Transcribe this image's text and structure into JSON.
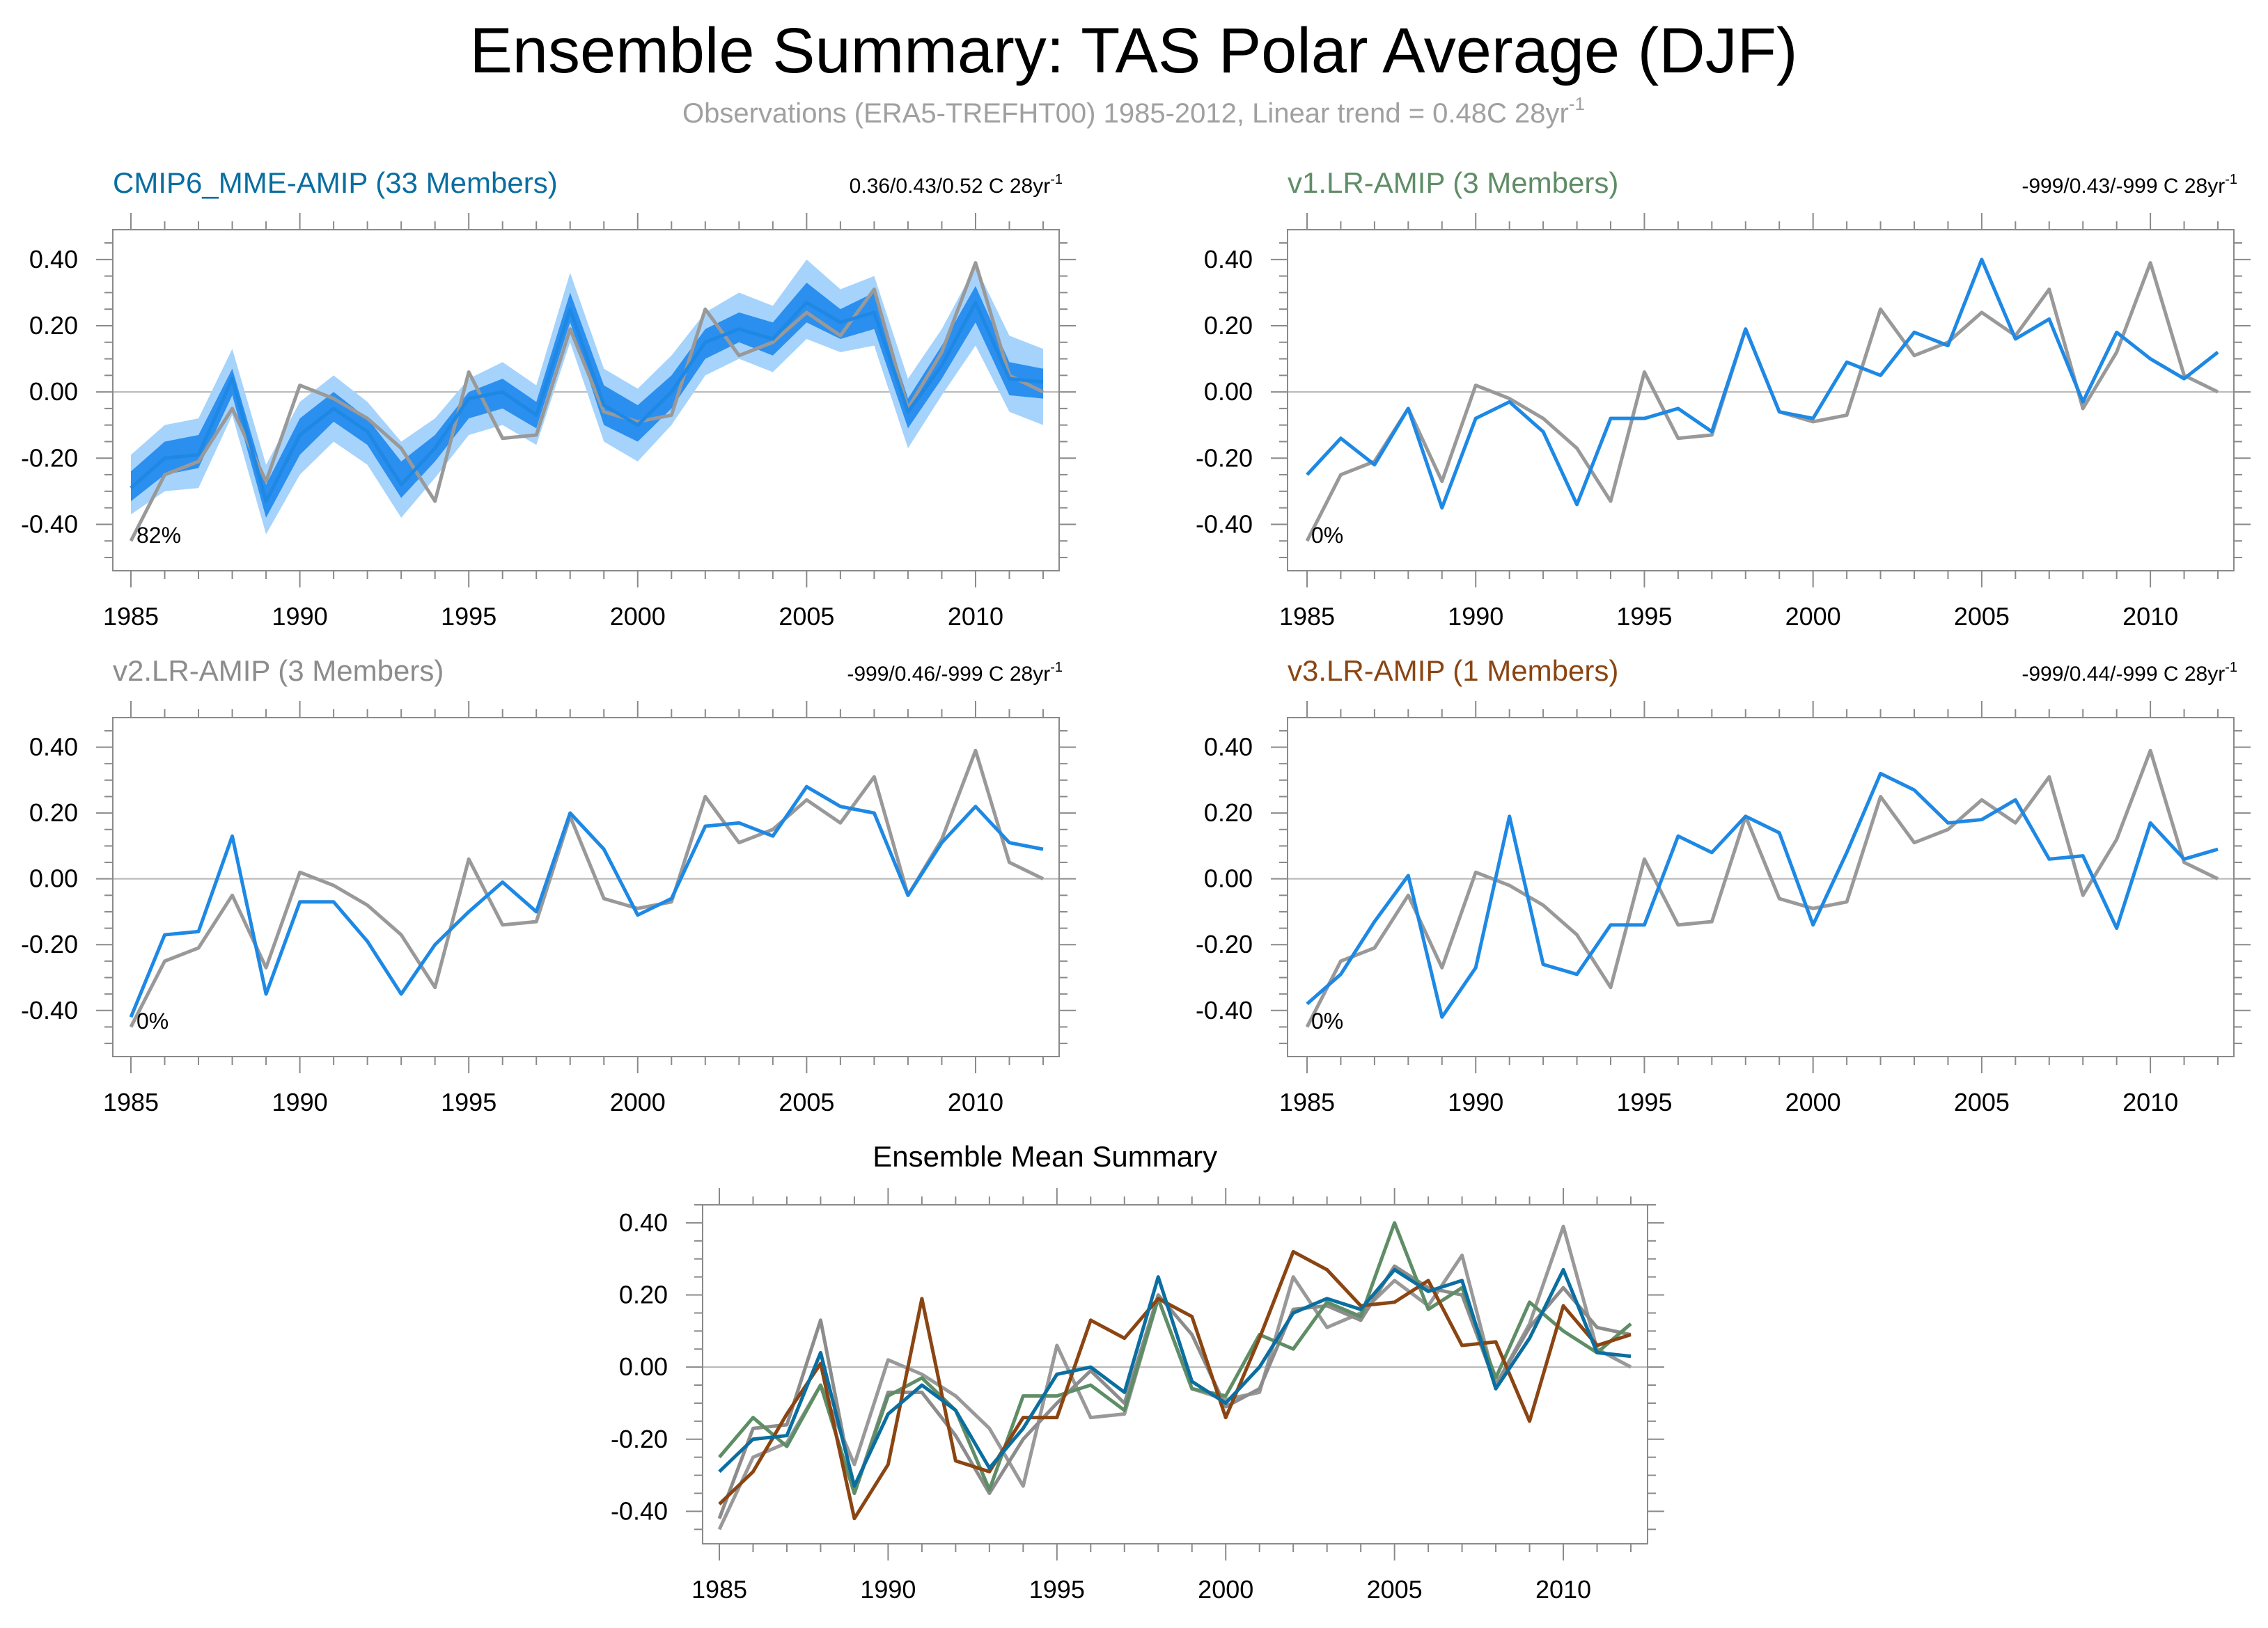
{
  "title": "Ensemble Summary: TAS Polar Average (DJF)",
  "subtitle": "Observations (ERA5-TREFHT00) 1985-2012, Linear trend = 0.48C 28yr",
  "subtitle_sup": "-1",
  "colors": {
    "obs": "#999999",
    "model": "#1e88e5",
    "band_inner": "#2b8fef",
    "band_outer": "#a6d3fb",
    "cmip6": "#0a6ea0",
    "v1": "#5e8d66",
    "v2": "#8c8c8c",
    "v3": "#8b4513"
  },
  "chart_data": [
    {
      "type": "line",
      "title": "CMIP6_MME-AMIP (33 Members)",
      "title_color": "#0a6ea0",
      "trend_text": "0.36/0.43/0.52 C 28yr",
      "trend_sup": "-1",
      "percent_label": "82%",
      "x": [
        1985,
        1986,
        1987,
        1988,
        1989,
        1990,
        1991,
        1992,
        1993,
        1994,
        1995,
        1996,
        1997,
        1998,
        1999,
        2000,
        2001,
        2002,
        2003,
        2004,
        2005,
        2006,
        2007,
        2008,
        2009,
        2010,
        2011,
        2012
      ],
      "xticks": [
        1985,
        1990,
        1995,
        2000,
        2005,
        2010
      ],
      "yticks": [
        -0.4,
        -0.2,
        0.0,
        0.2,
        0.4
      ],
      "yticklabels": [
        "-0.40",
        "-0.20",
        "0.00",
        "0.20",
        "0.40"
      ],
      "xlim": [
        1985,
        2012.6
      ],
      "ylim": [
        -0.54,
        0.49
      ],
      "bands": [
        {
          "name": "outer",
          "lower": [
            -0.37,
            -0.3,
            -0.29,
            -0.07,
            -0.43,
            -0.25,
            -0.15,
            -0.22,
            -0.38,
            -0.26,
            -0.13,
            -0.1,
            -0.16,
            0.15,
            -0.15,
            -0.21,
            -0.1,
            0.05,
            0.1,
            0.06,
            0.16,
            0.12,
            0.14,
            -0.17,
            -0.01,
            0.14,
            -0.06,
            -0.1
          ],
          "upper": [
            -0.19,
            -0.1,
            -0.08,
            0.13,
            -0.22,
            -0.03,
            0.05,
            -0.03,
            -0.15,
            -0.08,
            0.04,
            0.09,
            0.02,
            0.36,
            0.07,
            0.01,
            0.11,
            0.24,
            0.3,
            0.26,
            0.4,
            0.31,
            0.35,
            0.04,
            0.19,
            0.38,
            0.17,
            0.13
          ]
        },
        {
          "name": "inner",
          "lower": [
            -0.33,
            -0.25,
            -0.23,
            -0.01,
            -0.38,
            -0.19,
            -0.09,
            -0.16,
            -0.32,
            -0.21,
            -0.08,
            -0.05,
            -0.11,
            0.21,
            -0.1,
            -0.15,
            -0.05,
            0.1,
            0.15,
            0.11,
            0.21,
            0.16,
            0.19,
            -0.11,
            0.04,
            0.21,
            -0.01,
            -0.02
          ],
          "upper": [
            -0.24,
            -0.15,
            -0.13,
            0.07,
            -0.28,
            -0.08,
            0.0,
            -0.08,
            -0.21,
            -0.13,
            0.0,
            0.04,
            -0.03,
            0.3,
            0.02,
            -0.04,
            0.05,
            0.19,
            0.24,
            0.21,
            0.33,
            0.25,
            0.3,
            -0.02,
            0.14,
            0.32,
            0.09,
            0.07
          ]
        }
      ],
      "series": [
        {
          "name": "Observations",
          "color": "#999999",
          "values": [
            -0.45,
            -0.25,
            -0.21,
            -0.05,
            -0.27,
            0.02,
            -0.02,
            -0.08,
            -0.17,
            -0.33,
            0.06,
            -0.14,
            -0.13,
            0.19,
            -0.06,
            -0.09,
            -0.07,
            0.25,
            0.11,
            0.15,
            0.24,
            0.17,
            0.31,
            -0.05,
            0.12,
            0.39,
            0.05,
            0.0
          ]
        },
        {
          "name": "Ensemble mean",
          "color": "#1e88e5",
          "values": [
            -0.29,
            -0.2,
            -0.19,
            0.04,
            -0.33,
            -0.13,
            -0.05,
            -0.12,
            -0.28,
            -0.17,
            -0.02,
            0.0,
            -0.07,
            0.25,
            -0.04,
            -0.1,
            0.0,
            0.15,
            0.19,
            0.16,
            0.27,
            0.21,
            0.24,
            -0.06,
            0.08,
            0.27,
            0.04,
            0.03
          ]
        }
      ]
    },
    {
      "type": "line",
      "title": "v1.LR-AMIP (3 Members)",
      "title_color": "#5e8d66",
      "trend_text": "-999/0.43/-999 C 28yr",
      "trend_sup": "-1",
      "percent_label": "0%",
      "x": [
        1985,
        1986,
        1987,
        1988,
        1989,
        1990,
        1991,
        1992,
        1993,
        1994,
        1995,
        1996,
        1997,
        1998,
        1999,
        2000,
        2001,
        2002,
        2003,
        2004,
        2005,
        2006,
        2007,
        2008,
        2009,
        2010,
        2011,
        2012
      ],
      "xticks": [
        1985,
        1990,
        1995,
        2000,
        2005,
        2010
      ],
      "yticks": [
        -0.4,
        -0.2,
        0.0,
        0.2,
        0.4
      ],
      "yticklabels": [
        "-0.40",
        "-0.20",
        "0.00",
        "0.20",
        "0.40"
      ],
      "xlim": [
        1985,
        2012.6
      ],
      "ylim": [
        -0.54,
        0.49
      ],
      "series": [
        {
          "name": "Observations",
          "color": "#999999",
          "values": [
            -0.45,
            -0.25,
            -0.21,
            -0.05,
            -0.27,
            0.02,
            -0.02,
            -0.08,
            -0.17,
            -0.33,
            0.06,
            -0.14,
            -0.13,
            0.19,
            -0.06,
            -0.09,
            -0.07,
            0.25,
            0.11,
            0.15,
            0.24,
            0.17,
            0.31,
            -0.05,
            0.12,
            0.39,
            0.05,
            0.0
          ]
        },
        {
          "name": "v1.LR-AMIP",
          "color": "#1e88e5",
          "values": [
            -0.25,
            -0.14,
            -0.22,
            -0.05,
            -0.35,
            -0.08,
            -0.03,
            -0.12,
            -0.34,
            -0.08,
            -0.08,
            -0.05,
            -0.12,
            0.19,
            -0.06,
            -0.08,
            0.09,
            0.05,
            0.18,
            0.14,
            0.4,
            0.16,
            0.22,
            -0.03,
            0.18,
            0.1,
            0.04,
            0.12
          ]
        }
      ]
    },
    {
      "type": "line",
      "title": "v2.LR-AMIP (3 Members)",
      "title_color": "#8c8c8c",
      "trend_text": "-999/0.46/-999 C 28yr",
      "trend_sup": "-1",
      "percent_label": "0%",
      "x": [
        1985,
        1986,
        1987,
        1988,
        1989,
        1990,
        1991,
        1992,
        1993,
        1994,
        1995,
        1996,
        1997,
        1998,
        1999,
        2000,
        2001,
        2002,
        2003,
        2004,
        2005,
        2006,
        2007,
        2008,
        2009,
        2010,
        2011,
        2012
      ],
      "xticks": [
        1985,
        1990,
        1995,
        2000,
        2005,
        2010
      ],
      "yticks": [
        -0.4,
        -0.2,
        0.0,
        0.2,
        0.4
      ],
      "yticklabels": [
        "-0.40",
        "-0.20",
        "0.00",
        "0.20",
        "0.40"
      ],
      "xlim": [
        1985,
        2012.6
      ],
      "ylim": [
        -0.54,
        0.49
      ],
      "series": [
        {
          "name": "Observations",
          "color": "#999999",
          "values": [
            -0.45,
            -0.25,
            -0.21,
            -0.05,
            -0.27,
            0.02,
            -0.02,
            -0.08,
            -0.17,
            -0.33,
            0.06,
            -0.14,
            -0.13,
            0.19,
            -0.06,
            -0.09,
            -0.07,
            0.25,
            0.11,
            0.15,
            0.24,
            0.17,
            0.31,
            -0.05,
            0.12,
            0.39,
            0.05,
            0.0
          ]
        },
        {
          "name": "v2.LR-AMIP",
          "color": "#1e88e5",
          "values": [
            -0.42,
            -0.17,
            -0.16,
            0.13,
            -0.35,
            -0.07,
            -0.07,
            -0.19,
            -0.35,
            -0.2,
            -0.1,
            -0.01,
            -0.1,
            0.2,
            0.09,
            -0.11,
            -0.06,
            0.16,
            0.17,
            0.13,
            0.28,
            0.22,
            0.2,
            -0.05,
            0.11,
            0.22,
            0.11,
            0.09
          ]
        }
      ]
    },
    {
      "type": "line",
      "title": "v3.LR-AMIP (1 Members)",
      "title_color": "#8b4513",
      "trend_text": "-999/0.44/-999 C 28yr",
      "trend_sup": "-1",
      "percent_label": "0%",
      "x": [
        1985,
        1986,
        1987,
        1988,
        1989,
        1990,
        1991,
        1992,
        1993,
        1994,
        1995,
        1996,
        1997,
        1998,
        1999,
        2000,
        2001,
        2002,
        2003,
        2004,
        2005,
        2006,
        2007,
        2008,
        2009,
        2010,
        2011,
        2012
      ],
      "xticks": [
        1985,
        1990,
        1995,
        2000,
        2005,
        2010
      ],
      "yticks": [
        -0.4,
        -0.2,
        0.0,
        0.2,
        0.4
      ],
      "yticklabels": [
        "-0.40",
        "-0.20",
        "0.00",
        "0.20",
        "0.40"
      ],
      "xlim": [
        1985,
        2012.6
      ],
      "ylim": [
        -0.54,
        0.49
      ],
      "series": [
        {
          "name": "Observations",
          "color": "#999999",
          "values": [
            -0.45,
            -0.25,
            -0.21,
            -0.05,
            -0.27,
            0.02,
            -0.02,
            -0.08,
            -0.17,
            -0.33,
            0.06,
            -0.14,
            -0.13,
            0.19,
            -0.06,
            -0.09,
            -0.07,
            0.25,
            0.11,
            0.15,
            0.24,
            0.17,
            0.31,
            -0.05,
            0.12,
            0.39,
            0.05,
            0.0
          ]
        },
        {
          "name": "v3.LR-AMIP",
          "color": "#1e88e5",
          "values": [
            -0.38,
            -0.29,
            -0.13,
            0.01,
            -0.42,
            -0.27,
            0.19,
            -0.26,
            -0.29,
            -0.14,
            -0.14,
            0.13,
            0.08,
            0.19,
            0.14,
            -0.14,
            0.08,
            0.32,
            0.27,
            0.17,
            0.18,
            0.24,
            0.06,
            0.07,
            -0.15,
            0.17,
            0.06,
            0.09
          ]
        }
      ]
    },
    {
      "type": "line",
      "title": "Ensemble Mean Summary",
      "title_color": "#000000",
      "trend_text": "",
      "trend_sup": "",
      "percent_label": "",
      "x": [
        1985,
        1986,
        1987,
        1988,
        1989,
        1990,
        1991,
        1992,
        1993,
        1994,
        1995,
        1996,
        1997,
        1998,
        1999,
        2000,
        2001,
        2002,
        2003,
        2004,
        2005,
        2006,
        2007,
        2008,
        2009,
        2010,
        2011,
        2012
      ],
      "xticks": [
        1985,
        1990,
        1995,
        2000,
        2005,
        2010
      ],
      "yticks": [
        -0.4,
        -0.2,
        0.0,
        0.2,
        0.4
      ],
      "yticklabels": [
        "-0.40",
        "-0.20",
        "0.00",
        "0.20",
        "0.40"
      ],
      "xlim": [
        1985,
        2012.6
      ],
      "ylim": [
        -0.49,
        0.45
      ],
      "series": [
        {
          "name": "Observations",
          "color": "#999999",
          "values": [
            -0.45,
            -0.25,
            -0.21,
            -0.05,
            -0.27,
            0.02,
            -0.02,
            -0.08,
            -0.17,
            -0.33,
            0.06,
            -0.14,
            -0.13,
            0.19,
            -0.06,
            -0.09,
            -0.07,
            0.25,
            0.11,
            0.15,
            0.24,
            0.17,
            0.31,
            -0.05,
            0.12,
            0.39,
            0.05,
            0.0
          ]
        },
        {
          "name": "v2.LR-AMIP",
          "color": "#8c8c8c",
          "values": [
            -0.42,
            -0.17,
            -0.16,
            0.13,
            -0.35,
            -0.07,
            -0.07,
            -0.19,
            -0.35,
            -0.2,
            -0.1,
            -0.01,
            -0.1,
            0.2,
            0.09,
            -0.11,
            -0.06,
            0.16,
            0.17,
            0.13,
            0.28,
            0.22,
            0.2,
            -0.05,
            0.11,
            0.22,
            0.11,
            0.09
          ]
        },
        {
          "name": "v1.LR-AMIP",
          "color": "#5e8d66",
          "values": [
            -0.25,
            -0.14,
            -0.22,
            -0.05,
            -0.35,
            -0.08,
            -0.03,
            -0.12,
            -0.34,
            -0.08,
            -0.08,
            -0.05,
            -0.12,
            0.19,
            -0.06,
            -0.08,
            0.09,
            0.05,
            0.18,
            0.14,
            0.4,
            0.16,
            0.22,
            -0.03,
            0.18,
            0.1,
            0.04,
            0.12
          ]
        },
        {
          "name": "v3.LR-AMIP",
          "color": "#8b4513",
          "values": [
            -0.38,
            -0.29,
            -0.13,
            0.01,
            -0.42,
            -0.27,
            0.19,
            -0.26,
            -0.29,
            -0.14,
            -0.14,
            0.13,
            0.08,
            0.19,
            0.14,
            -0.14,
            0.08,
            0.32,
            0.27,
            0.17,
            0.18,
            0.24,
            0.06,
            0.07,
            -0.15,
            0.17,
            0.06,
            0.09
          ]
        },
        {
          "name": "CMIP6_MME-AMIP",
          "color": "#0a6ea0",
          "values": [
            -0.29,
            -0.2,
            -0.19,
            0.04,
            -0.33,
            -0.13,
            -0.05,
            -0.12,
            -0.28,
            -0.17,
            -0.02,
            0.0,
            -0.07,
            0.25,
            -0.04,
            -0.1,
            0.0,
            0.15,
            0.19,
            0.16,
            0.27,
            0.21,
            0.24,
            -0.06,
            0.08,
            0.27,
            0.04,
            0.03
          ]
        }
      ]
    }
  ]
}
